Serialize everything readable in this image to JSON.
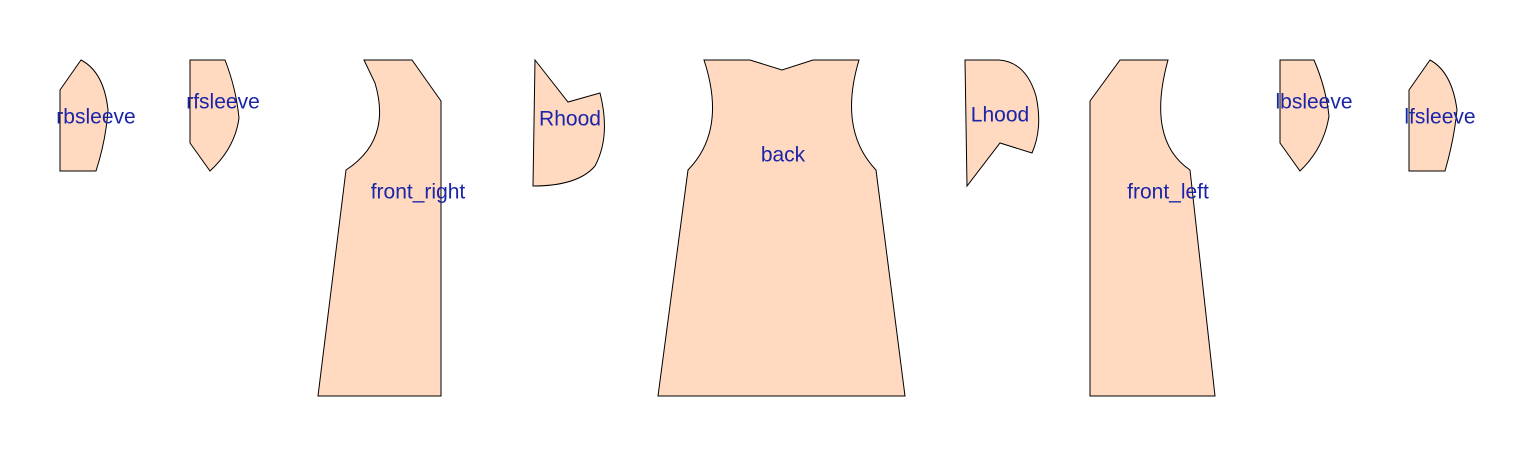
{
  "colors": {
    "background": "#ffffff",
    "piece_fill": "#ffdac1",
    "piece_stroke": "#000000",
    "label_color": "#1a25a8"
  },
  "pieces": [
    {
      "id": "rbsleeve",
      "label": "rbsleeve"
    },
    {
      "id": "rfsleeve",
      "label": "rfsleeve"
    },
    {
      "id": "front_right",
      "label": "front_right"
    },
    {
      "id": "Rhood",
      "label": "Rhood"
    },
    {
      "id": "back",
      "label": "back"
    },
    {
      "id": "Lhood",
      "label": "Lhood"
    },
    {
      "id": "front_left",
      "label": "front_left"
    },
    {
      "id": "lbsleeve",
      "label": "lbsleeve"
    },
    {
      "id": "lfsleeve",
      "label": "lfsleeve"
    }
  ]
}
